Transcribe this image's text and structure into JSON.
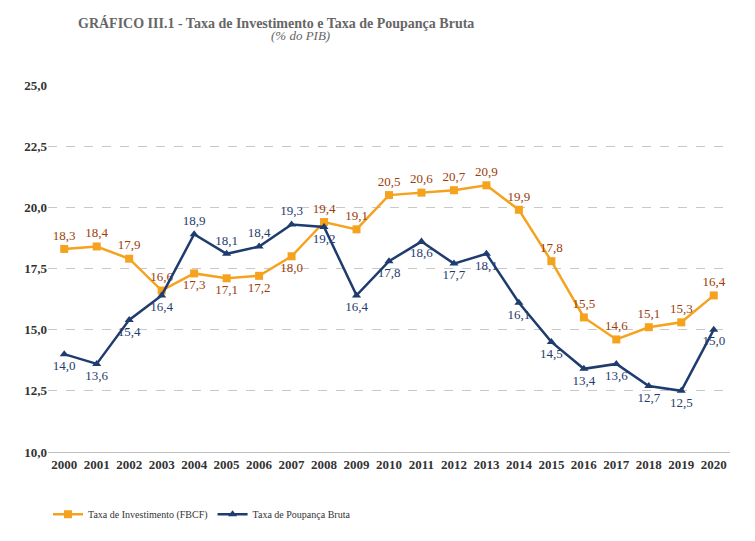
{
  "chart_data": {
    "type": "line",
    "title": "GRÁFICO III.1 - Taxa de Investimento e Taxa de Poupança Bruta",
    "subtitle": "(% do PIB)",
    "categories": [
      "2000",
      "2001",
      "2002",
      "2003",
      "2004",
      "2005",
      "2006",
      "2007",
      "2008",
      "2009",
      "2010",
      "2011",
      "2012",
      "2013",
      "2014",
      "2015",
      "2016",
      "2017",
      "2018",
      "2019",
      "2020"
    ],
    "series": [
      {
        "name": "Taxa de Investimento (FBCF)",
        "color": "#f5a21e",
        "marker": "square",
        "line_style": "solid",
        "values": [
          18.3,
          18.4,
          17.9,
          16.6,
          17.3,
          17.1,
          17.2,
          18.0,
          19.4,
          19.1,
          20.5,
          20.6,
          20.7,
          20.9,
          19.9,
          17.8,
          15.5,
          14.6,
          15.1,
          15.3,
          16.4
        ],
        "value_labels": [
          "18,3",
          "18,4",
          "17,9",
          "16,6",
          "17,3",
          "17,1",
          "17,2",
          "18,0",
          "19,4",
          "19,1",
          "20,5",
          "20,6",
          "20,7",
          "20,9",
          "19,9",
          "17,8",
          "15,5",
          "14,6",
          "15,1",
          "15,3",
          "16,4"
        ]
      },
      {
        "name": "Taxa de Poupança Bruta",
        "color": "#1f3c6e",
        "marker": "triangle-up",
        "line_style": "solid",
        "values": [
          14.0,
          13.6,
          15.4,
          16.4,
          18.9,
          18.1,
          18.4,
          19.3,
          19.2,
          16.4,
          17.8,
          18.6,
          17.7,
          18.1,
          16.1,
          14.5,
          13.4,
          13.6,
          12.7,
          12.5,
          15.0
        ],
        "value_labels": [
          "14,0",
          "13,6",
          "15,4",
          "16,4",
          "18,9",
          "18,1",
          "18,4",
          "19,3",
          "19,2",
          "16,4",
          "17,8",
          "18,6",
          "17,7",
          "18,1",
          "16,1",
          "14,5",
          "13,4",
          "13,6",
          "12,7",
          "12,5",
          "15,0"
        ]
      }
    ],
    "ylim": [
      10.0,
      25.0
    ],
    "yticks": [
      {
        "value": 10.0,
        "label": "10,0"
      },
      {
        "value": 12.5,
        "label": "12,5"
      },
      {
        "value": 15.0,
        "label": "15,0"
      },
      {
        "value": 17.5,
        "label": "17,5"
      },
      {
        "value": 20.0,
        "label": "20,0"
      },
      {
        "value": 22.5,
        "label": "22,5"
      },
      {
        "value": 25.0,
        "label": "25,0"
      }
    ],
    "grid": true,
    "legend": "bottom",
    "data_labels": true
  }
}
